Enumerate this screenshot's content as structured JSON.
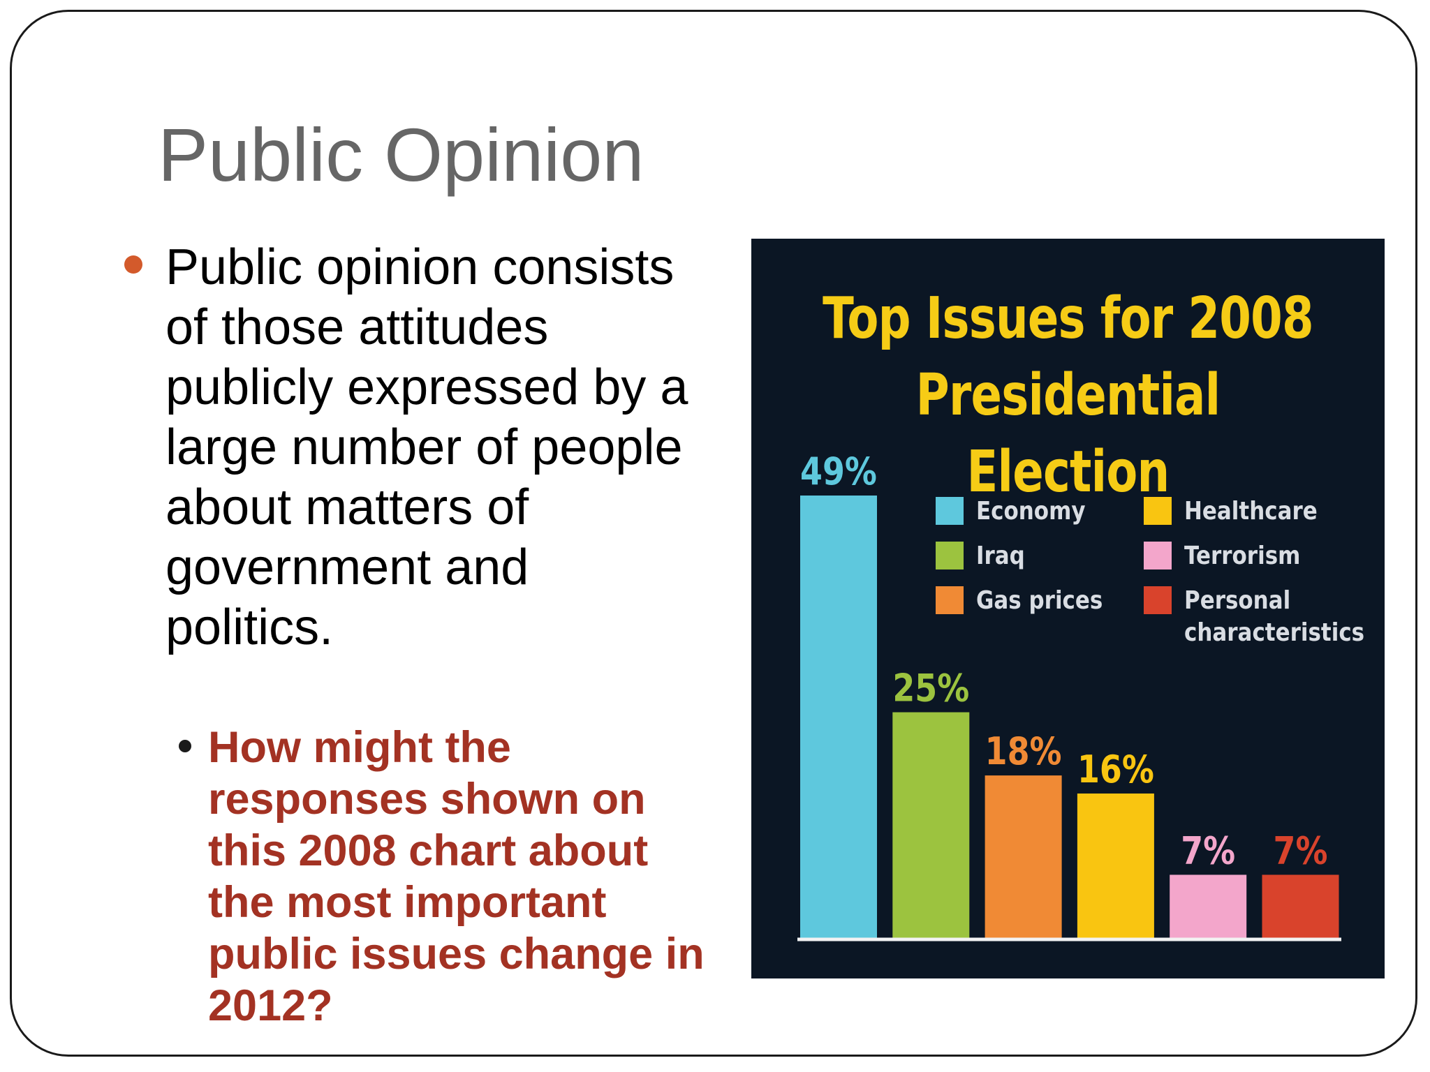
{
  "slide": {
    "title": "Public Opinion",
    "bullet_main": "Public opinion consists of those attitudes publicly expressed by a large number of people about matters of government and politics.",
    "bullet_sub": "How might the responses shown on this 2008 chart about the most important public issues change in 2012?"
  },
  "colors": {
    "title": "#666666",
    "bullet_dot": "#d35a2b",
    "question_text": "#a33223",
    "chart_background": "#0b1624",
    "chart_title": "#f6cc16"
  },
  "chart_data": {
    "type": "bar",
    "title": "Top Issues for 2008 Presidential Election",
    "categories": [
      "Economy",
      "Iraq",
      "Gas prices",
      "Healthcare",
      "Terrorism",
      "Personal characteristics"
    ],
    "values": [
      49,
      25,
      18,
      16,
      7,
      7
    ],
    "value_labels": [
      "49%",
      "25%",
      "18%",
      "16%",
      "7%",
      "7%"
    ],
    "colors": [
      "#5ec8dd",
      "#9cc33f",
      "#f08a35",
      "#f9c511",
      "#f3a6cb",
      "#d9432c"
    ],
    "label_colors": [
      "#5ec8dd",
      "#9cc33f",
      "#f08a35",
      "#f9c511",
      "#f3a6cb",
      "#d9432c"
    ],
    "ylim": [
      0,
      49
    ],
    "xlabel": "",
    "ylabel": "",
    "grid": false,
    "legend": {
      "placement": "top-right",
      "columns": [
        [
          "Economy",
          "Iraq",
          "Gas prices"
        ],
        [
          "Healthcare",
          "Terrorism",
          "Personal characteristics"
        ]
      ]
    }
  }
}
